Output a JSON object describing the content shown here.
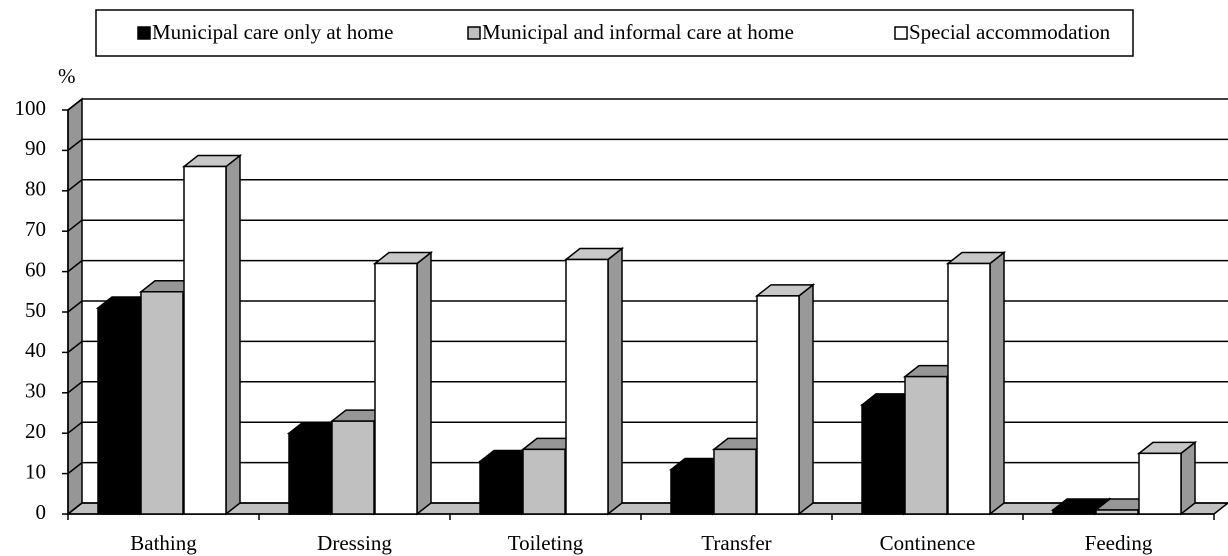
{
  "chart_data": {
    "type": "bar3d",
    "y_label": "%",
    "categories": [
      "Bathing",
      "Dressing",
      "Toileting",
      "Transfer",
      "Continence",
      "Feeding"
    ],
    "series": [
      {
        "name": "Municipal care only at home",
        "color": "#000000",
        "values": [
          51,
          20,
          13,
          11,
          27,
          1
        ]
      },
      {
        "name": "Municipal and informal care at home",
        "color": "#c0c0c0",
        "values": [
          55,
          23,
          16,
          16,
          34,
          1
        ]
      },
      {
        "name": "Special accommodation",
        "color": "#ffffff",
        "values": [
          86,
          62,
          63,
          54,
          62,
          15
        ]
      }
    ],
    "ylim": [
      0,
      100
    ],
    "yticks": [
      0,
      10,
      20,
      30,
      40,
      50,
      60,
      70,
      80,
      90,
      100
    ],
    "grid": true,
    "legend": "top"
  }
}
